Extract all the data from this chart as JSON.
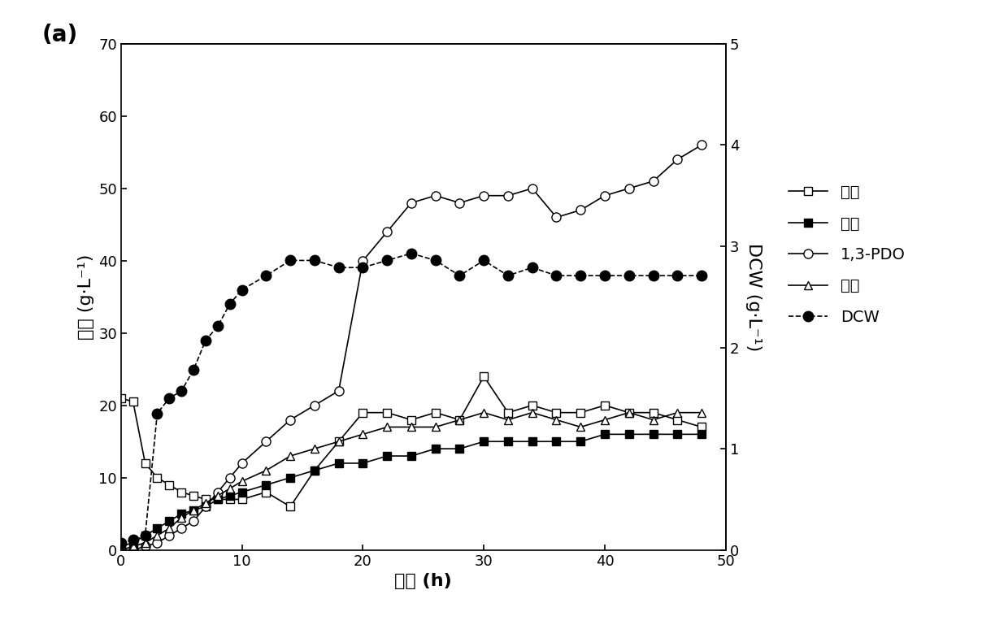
{
  "title_label": "(a)",
  "xlabel": "时间 (h)",
  "ylabel_left": "浓度 (g·L⁻¹)",
  "ylabel_right": "DCW (g·L⁻¹)",
  "ylim_left": [
    0,
    70
  ],
  "ylim_right": [
    0,
    5
  ],
  "xlim": [
    0,
    50
  ],
  "xticks": [
    0,
    10,
    20,
    30,
    40,
    50
  ],
  "yticks_left": [
    0,
    10,
    20,
    30,
    40,
    50,
    60,
    70
  ],
  "yticks_right": [
    0,
    1,
    2,
    3,
    4,
    5
  ],
  "glycerol_x": [
    0,
    1,
    2,
    3,
    4,
    5,
    6,
    7,
    8,
    9,
    10,
    12,
    14,
    16,
    18,
    20,
    22,
    24,
    26,
    28,
    30,
    32,
    34,
    36,
    38,
    40,
    42,
    44,
    46,
    48
  ],
  "glycerol_y": [
    21,
    20.5,
    12,
    10,
    9,
    8,
    7.5,
    7,
    7,
    7,
    7,
    8,
    6,
    11,
    15,
    19,
    19,
    18,
    19,
    18,
    24,
    19,
    20,
    19,
    19,
    20,
    19,
    19,
    18,
    17
  ],
  "acetic_x": [
    0,
    1,
    2,
    3,
    4,
    5,
    6,
    7,
    8,
    9,
    10,
    12,
    14,
    16,
    18,
    20,
    22,
    24,
    26,
    28,
    30,
    32,
    34,
    36,
    38,
    40,
    42,
    44,
    46,
    48
  ],
  "acetic_y": [
    0.5,
    1,
    2,
    3,
    4,
    5,
    5.5,
    6,
    7,
    7.5,
    8,
    9,
    10,
    11,
    12,
    12,
    13,
    13,
    14,
    14,
    15,
    15,
    15,
    15,
    15,
    16,
    16,
    16,
    16,
    16
  ],
  "pdo_x": [
    0,
    1,
    2,
    3,
    4,
    5,
    6,
    7,
    8,
    9,
    10,
    12,
    14,
    16,
    18,
    20,
    22,
    24,
    26,
    28,
    30,
    32,
    34,
    36,
    38,
    40,
    42,
    44,
    46,
    48
  ],
  "pdo_y": [
    0,
    0,
    0.5,
    1,
    2,
    3,
    4,
    6,
    8,
    10,
    12,
    15,
    18,
    20,
    22,
    40,
    44,
    48,
    49,
    48,
    49,
    49,
    50,
    46,
    47,
    49,
    50,
    51,
    54,
    56
  ],
  "lactic_x": [
    0,
    1,
    2,
    3,
    4,
    5,
    6,
    7,
    8,
    9,
    10,
    12,
    14,
    16,
    18,
    20,
    22,
    24,
    26,
    28,
    30,
    32,
    34,
    36,
    38,
    40,
    42,
    44,
    46,
    48
  ],
  "lactic_y": [
    0,
    0.5,
    1,
    2,
    3,
    4.5,
    5.5,
    6.5,
    7.5,
    8.5,
    9.5,
    11,
    13,
    14,
    15,
    16,
    17,
    17,
    17,
    18,
    19,
    18,
    19,
    18,
    17,
    18,
    19,
    18,
    19,
    19
  ],
  "dcw_x": [
    0,
    1,
    2,
    3,
    4,
    5,
    6,
    7,
    8,
    9,
    10,
    12,
    14,
    16,
    18,
    20,
    22,
    24,
    26,
    28,
    30,
    32,
    34,
    36,
    38,
    40,
    42,
    44,
    46,
    48
  ],
  "dcw_y": [
    0.07,
    0.1,
    0.14,
    1.35,
    1.5,
    1.57,
    1.78,
    2.07,
    2.21,
    2.43,
    2.57,
    2.71,
    2.86,
    2.86,
    2.79,
    2.79,
    2.86,
    2.93,
    2.86,
    2.71,
    2.86,
    2.71,
    2.79,
    2.71,
    2.71,
    2.71,
    2.71,
    2.71,
    2.71,
    2.71
  ],
  "legend_labels": [
    "甘油",
    "乙酸",
    "1,3-PDO",
    "乳酸",
    "DCW"
  ],
  "background_color": "#ffffff",
  "line_color": "#000000",
  "font_size": 14,
  "tick_font_size": 13,
  "label_font_size": 16
}
